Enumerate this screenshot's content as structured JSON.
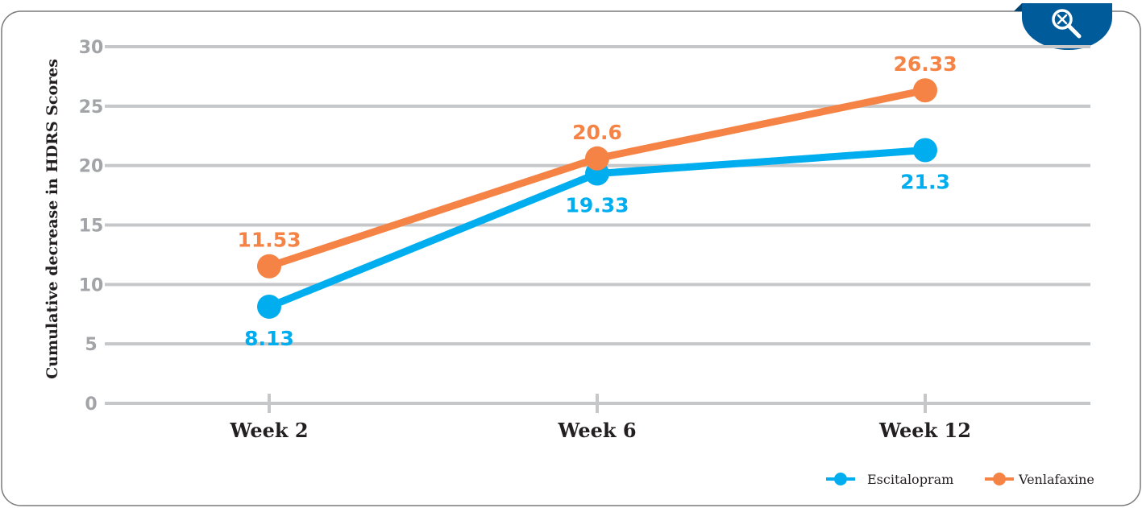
{
  "chart_data": {
    "type": "line",
    "categories": [
      "Week 2",
      "Week 6",
      "Week 12"
    ],
    "series": [
      {
        "name": "Escitalopram",
        "values": [
          8.13,
          19.33,
          21.3
        ],
        "labels": [
          "8.13",
          "19.33",
          "21.3"
        ],
        "label_position": "below",
        "color": "#00aeef"
      },
      {
        "name": "Venlafaxine",
        "values": [
          11.53,
          20.6,
          26.33
        ],
        "labels": [
          "11.53",
          "20.6",
          "26.33"
        ],
        "label_position": "above",
        "color": "#f58345"
      }
    ],
    "ylabel": "Cumulative decrease in HDRS Scores",
    "xlabel": "",
    "ylim": [
      0,
      30
    ],
    "yticks": [
      0,
      5,
      10,
      15,
      20,
      25,
      30
    ],
    "grid": true,
    "legend": "bottom-right"
  },
  "colors": {
    "grid": "#c6c7c9",
    "tick_text": "#a2a4a8",
    "frame": "#7a7a7a",
    "badge": "#005b9a"
  },
  "zoom_button": {
    "icon": "zoom-out-icon"
  }
}
